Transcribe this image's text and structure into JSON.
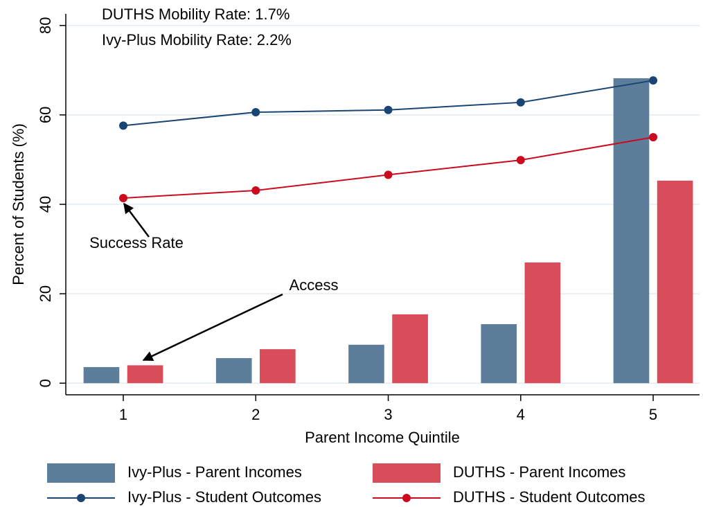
{
  "chart_data": {
    "type": "bar",
    "x_label": "Parent Income Quintile",
    "y_label": "Percent of Students (%)",
    "x": [
      1,
      2,
      3,
      4,
      5
    ],
    "xlim": [
      0.566,
      5.35
    ],
    "xticks": [
      1,
      2,
      3,
      4,
      5
    ],
    "ylim": [
      -2.6,
      82.6
    ],
    "yticks": [
      0,
      20,
      40,
      60,
      80
    ],
    "grid": true,
    "series": [
      {
        "name": "Ivy-Plus - Parent Incomes",
        "type": "bar",
        "color": "#5d7e9b",
        "values": [
          3.6,
          5.6,
          8.6,
          13.2,
          68.2
        ]
      },
      {
        "name": "DUTHS - Parent Incomes",
        "type": "bar",
        "color": "#d94c5a",
        "values": [
          4.0,
          7.6,
          15.4,
          27.0,
          45.3
        ]
      },
      {
        "name": "Ivy-Plus - Student Outcomes",
        "type": "line",
        "color": "#1a4472",
        "values": [
          57.6,
          60.6,
          61.1,
          62.8,
          67.7
        ]
      },
      {
        "name": "DUTHS - Student Outcomes",
        "type": "line",
        "color": "#cc0a1e",
        "values": [
          41.4,
          43.1,
          46.6,
          49.9,
          55.0
        ]
      }
    ],
    "annotations": [
      "DUTHS Mobility Rate:  1.7%",
      "Ivy-Plus Mobility Rate:   2.2%",
      "Success Rate",
      "Access"
    ]
  }
}
